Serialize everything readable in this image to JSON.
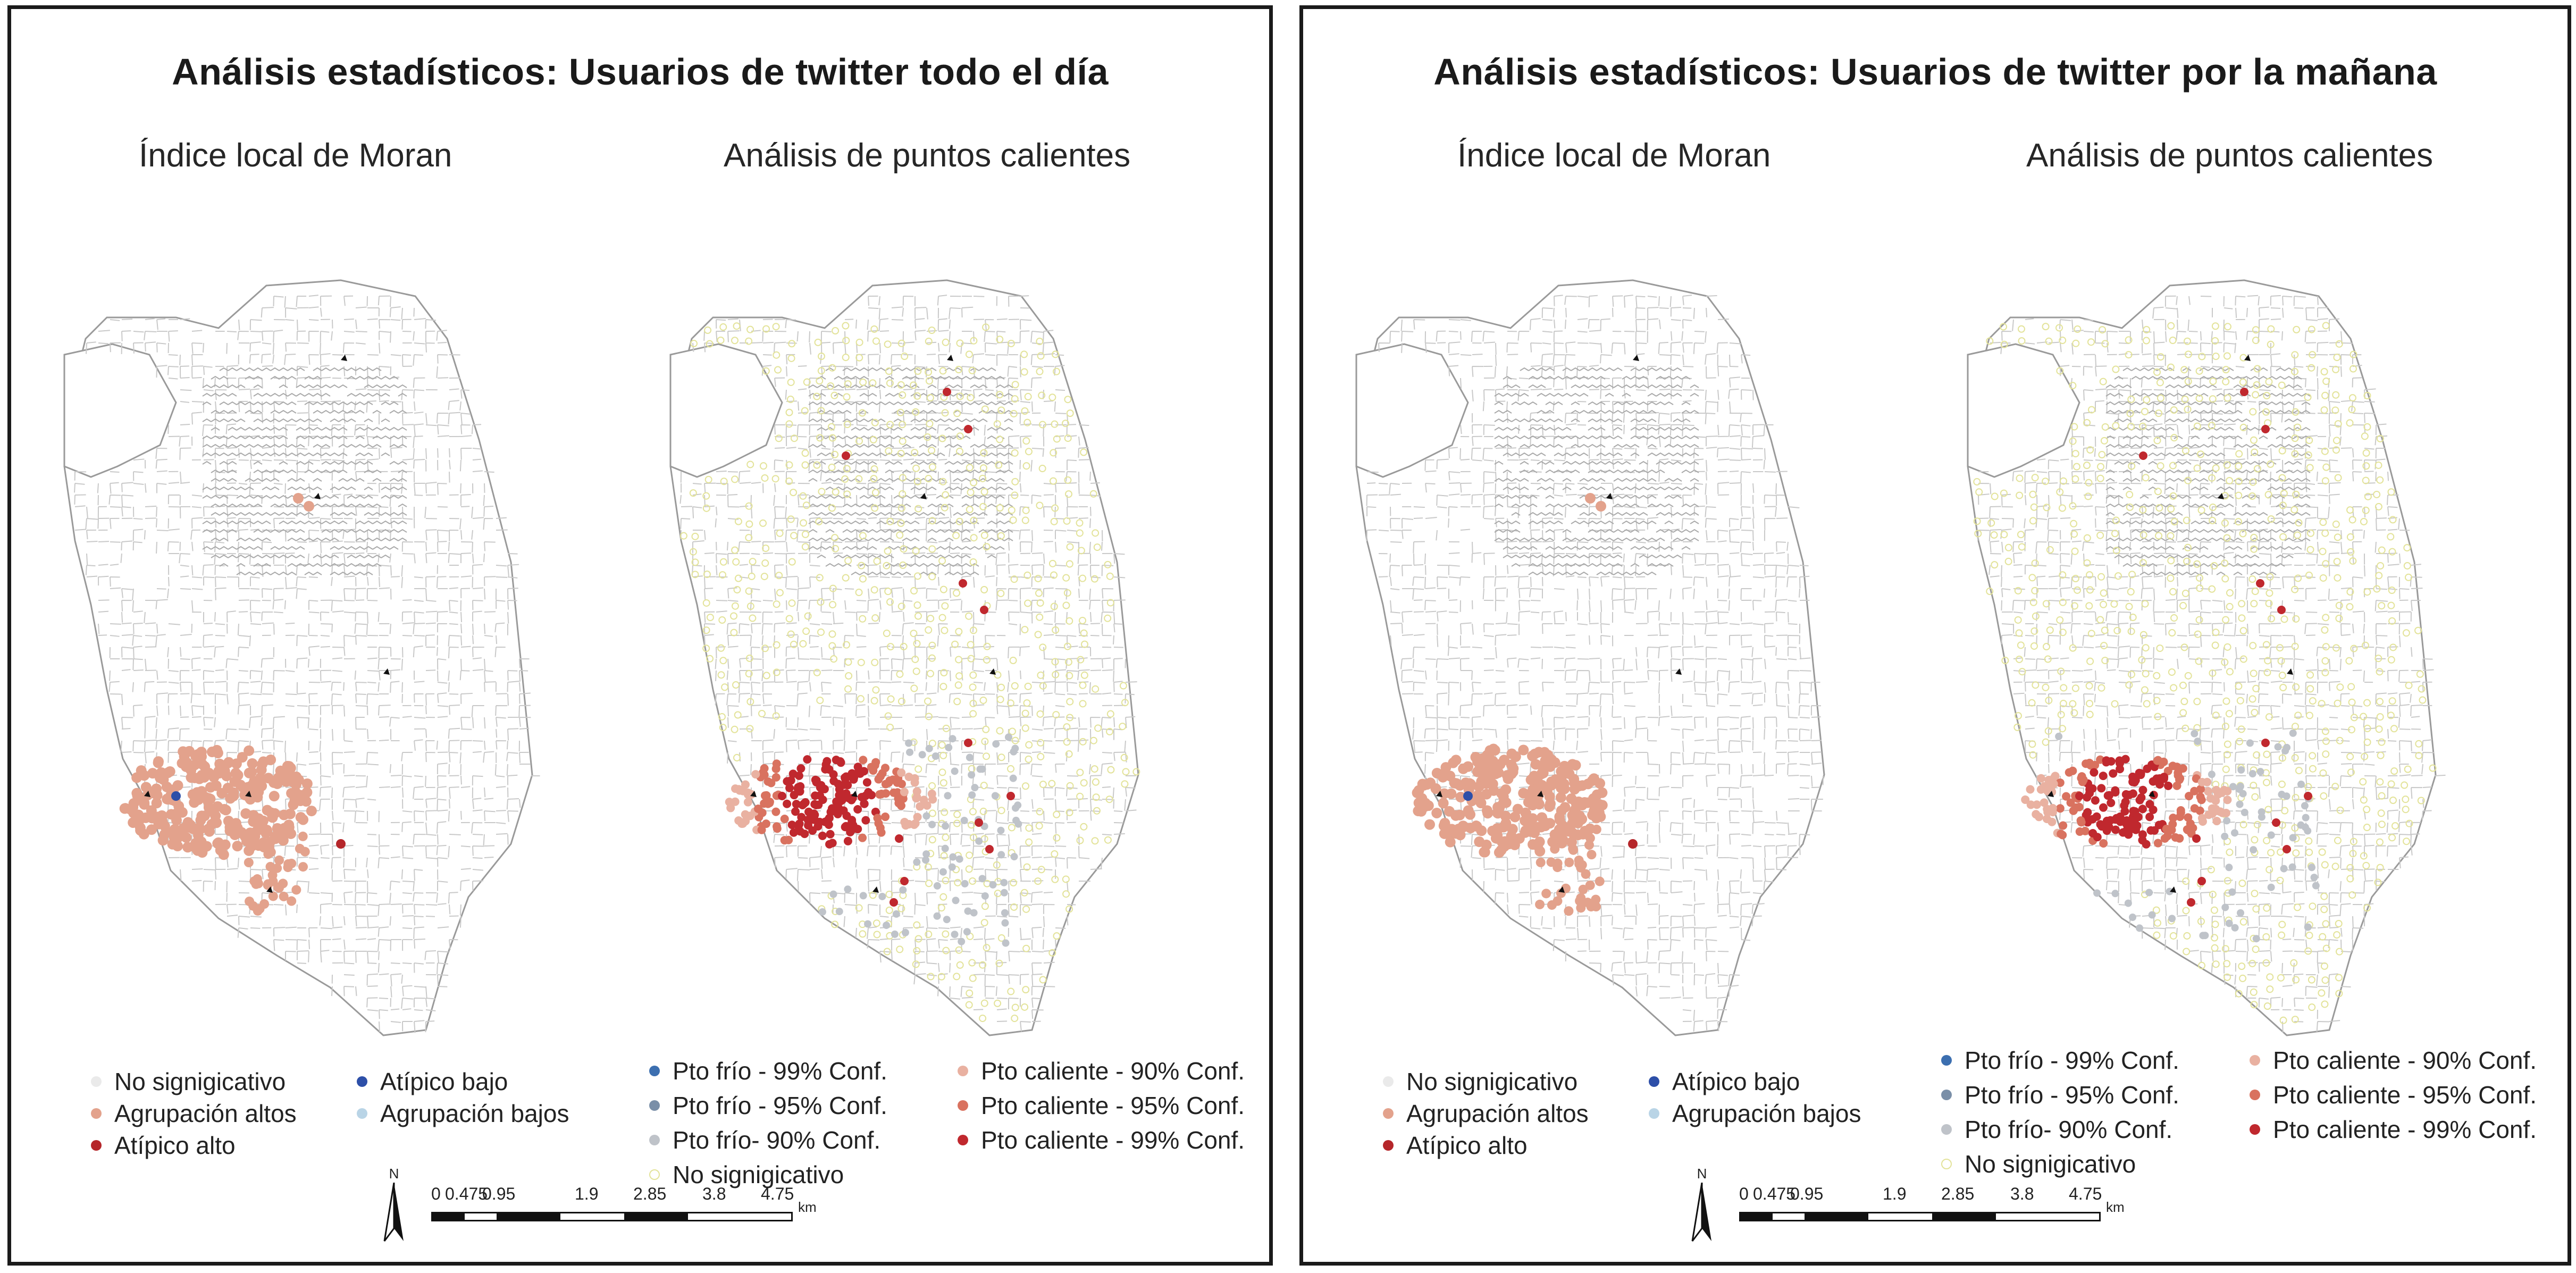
{
  "colors": {
    "street": "#c9c9c9",
    "street_dense": "#a9a9a9",
    "outline": "#9a9a9a",
    "hot_99": "#c0282e",
    "hot_95": "#d9725f",
    "hot_90": "#e9b1a1",
    "cold_99": "#3c6fb0",
    "cold_95": "#7a8fa8",
    "cold_90": "#bfc3c9",
    "ns_hollow": "#e3e39a",
    "moran_high": "#e3a28c",
    "moran_atip_alto": "#b5262a",
    "moran_atip_bajo": "#2d4fa8",
    "moran_low": "#b9d4e6"
  },
  "panels": [
    {
      "title": "Análisis estadísticos: Usuarios de twitter todo el día",
      "moran_title": "Índice local de Moran",
      "hotspot_title": "Análisis de puntos calientes",
      "moran_legend": {
        "col1": [
          "No signigicativo",
          "Agrupación altos",
          "Atípico alto"
        ],
        "col2": [
          "Atípico bajo",
          "Agrupación bajos"
        ]
      },
      "hotspot_legend": {
        "col1": [
          "Pto frío - 99% Conf.",
          "Pto frío - 95% Conf.",
          "Pto frío- 90% Conf.",
          "No signigicativo"
        ],
        "col2": [
          "Pto caliente - 90% Conf.",
          "Pto caliente - 95% Conf.",
          "Pto caliente - 99% Conf."
        ]
      },
      "scale": {
        "north": "N",
        "ticks": [
          "0",
          "0.475",
          "0.95",
          "1.9",
          "2.85",
          "3.8",
          "4.75"
        ],
        "units": "km"
      }
    },
    {
      "title": "Análisis estadísticos: Usuarios de twitter por la mañana",
      "moran_title": "Índice local de Moran",
      "hotspot_title": "Análisis de puntos calientes",
      "moran_legend": {
        "col1": [
          "No signigicativo",
          "Agrupación altos",
          "Atípico alto"
        ],
        "col2": [
          "Atípico bajo",
          "Agrupación bajos"
        ]
      },
      "hotspot_legend": {
        "col1": [
          "Pto frío - 99% Conf.",
          "Pto frío - 95% Conf.",
          "Pto frío- 90% Conf.",
          "No signigicativo"
        ],
        "col2": [
          "Pto caliente - 90% Conf.",
          "Pto caliente - 95% Conf.",
          "Pto caliente - 99% Conf."
        ]
      },
      "scale": {
        "north": "N",
        "ticks": [
          "0",
          "0.475",
          "0.95",
          "1.9",
          "2.85",
          "3.8",
          "4.75"
        ],
        "units": "km"
      }
    }
  ]
}
